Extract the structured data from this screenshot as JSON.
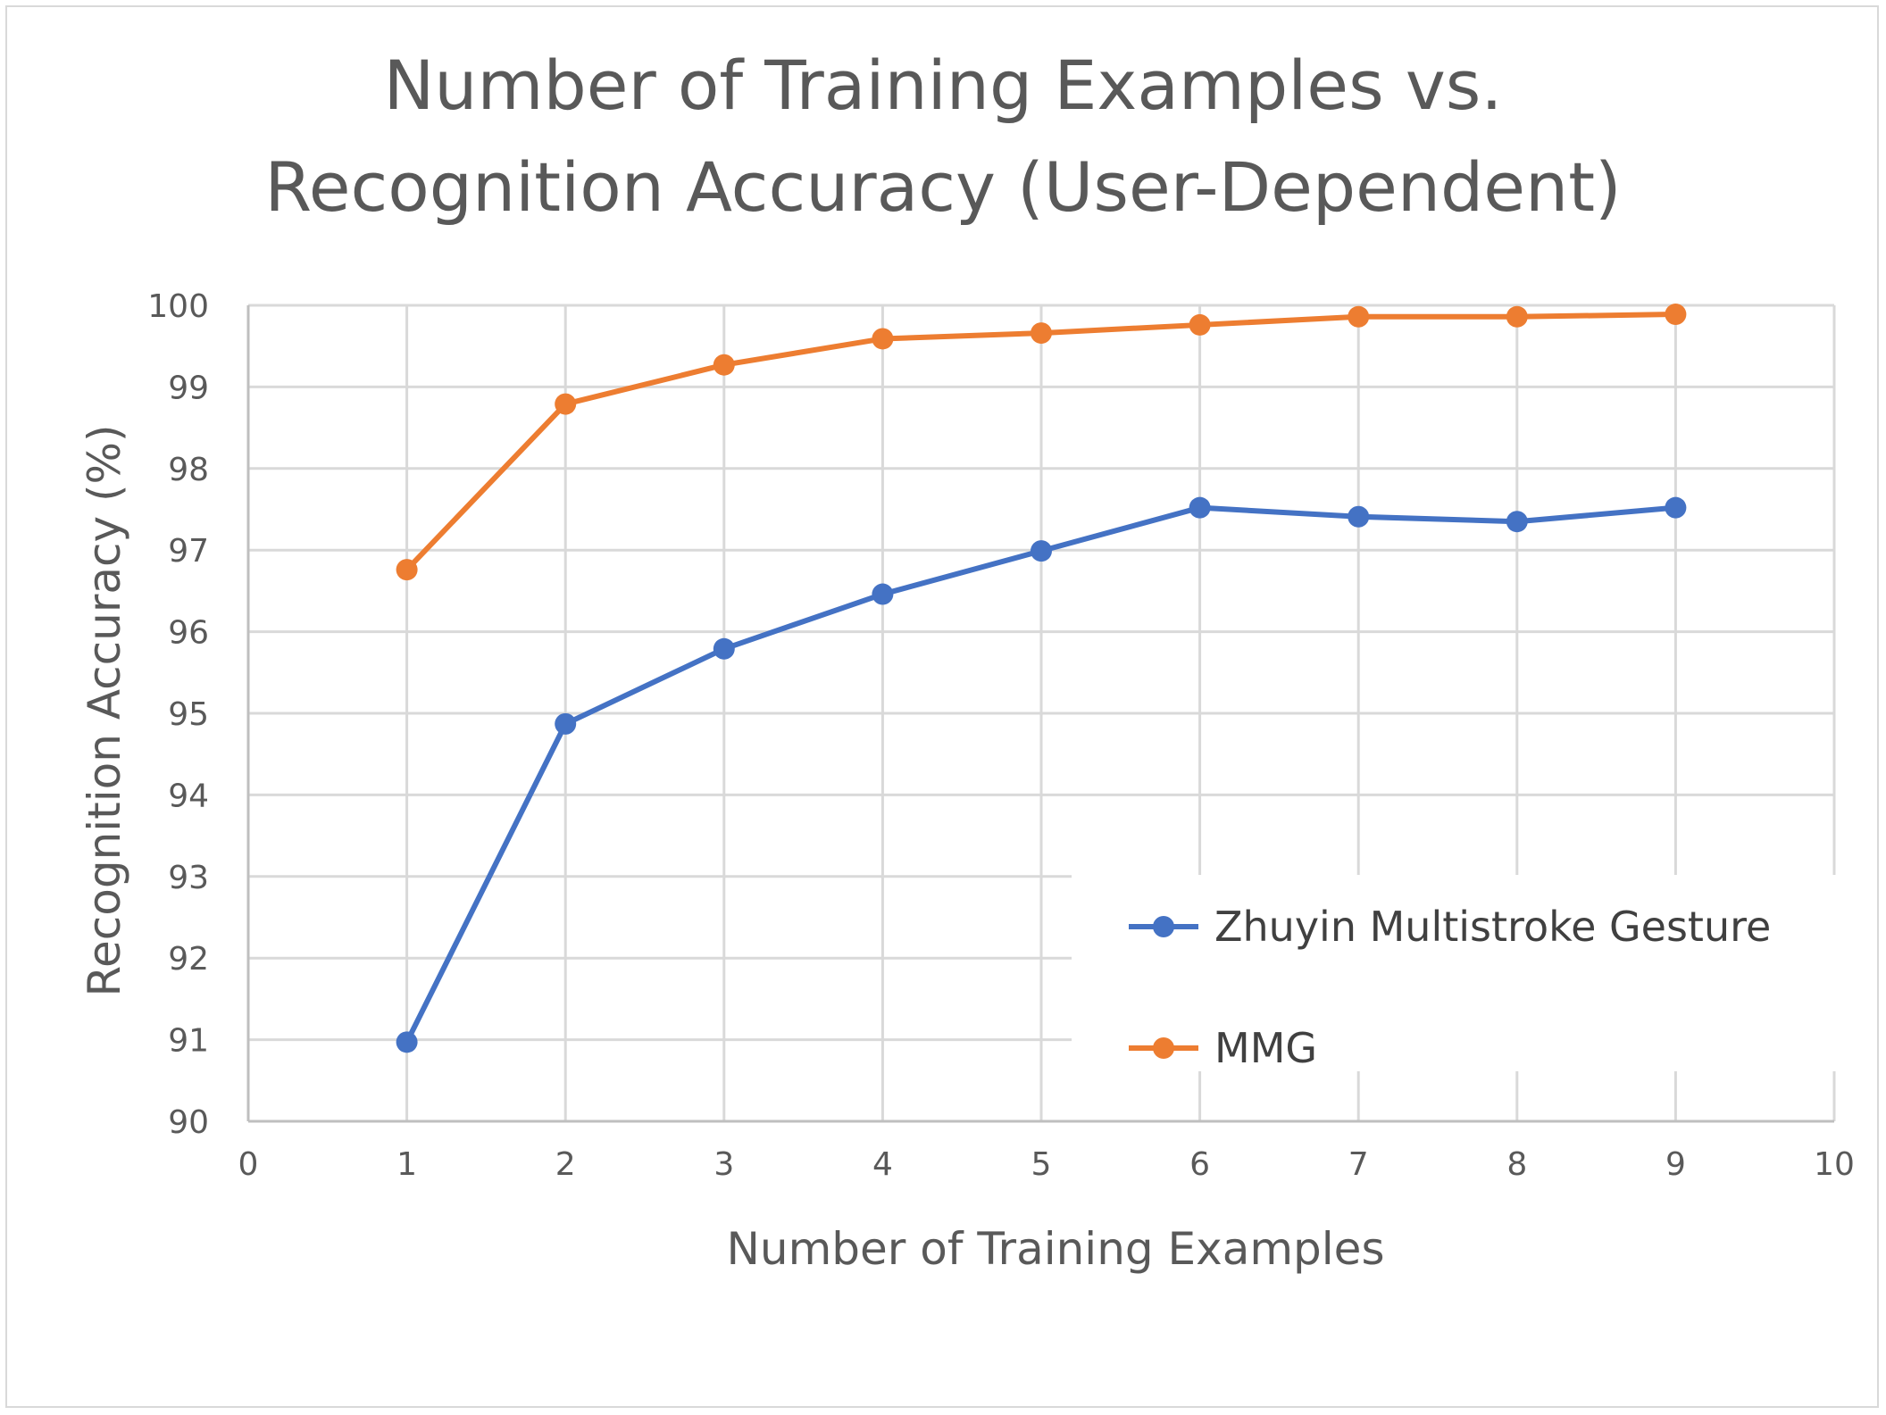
{
  "chart_data": {
    "type": "line",
    "title_lines": [
      "Number of Training Examples vs.",
      "Recognition Accuracy (User-Dependent)"
    ],
    "xlabel": "Number of Training Examples",
    "ylabel": "Recognition Accuracy (%)",
    "xlim": [
      0,
      10
    ],
    "ylim": [
      90,
      100
    ],
    "xticks": [
      "0",
      "1",
      "2",
      "3",
      "4",
      "5",
      "6",
      "7",
      "8",
      "9",
      "10"
    ],
    "yticks": [
      "90",
      "91",
      "92",
      "93",
      "94",
      "95",
      "96",
      "97",
      "98",
      "99",
      "100"
    ],
    "grid": true,
    "legend_position": "bottom-right",
    "x": [
      1,
      2,
      3,
      4,
      5,
      6,
      7,
      8,
      9
    ],
    "series": [
      {
        "name": "Zhuyin Multistroke Gesture",
        "color": "#4472c4",
        "marker": "circle",
        "values": [
          90.97,
          94.87,
          95.79,
          96.46,
          96.99,
          97.52,
          97.41,
          97.35,
          97.52
        ]
      },
      {
        "name": "MMG",
        "color": "#ed7d31",
        "marker": "circle",
        "values": [
          96.76,
          98.79,
          99.27,
          99.59,
          99.66,
          99.76,
          99.86,
          99.86,
          99.89
        ]
      }
    ]
  }
}
